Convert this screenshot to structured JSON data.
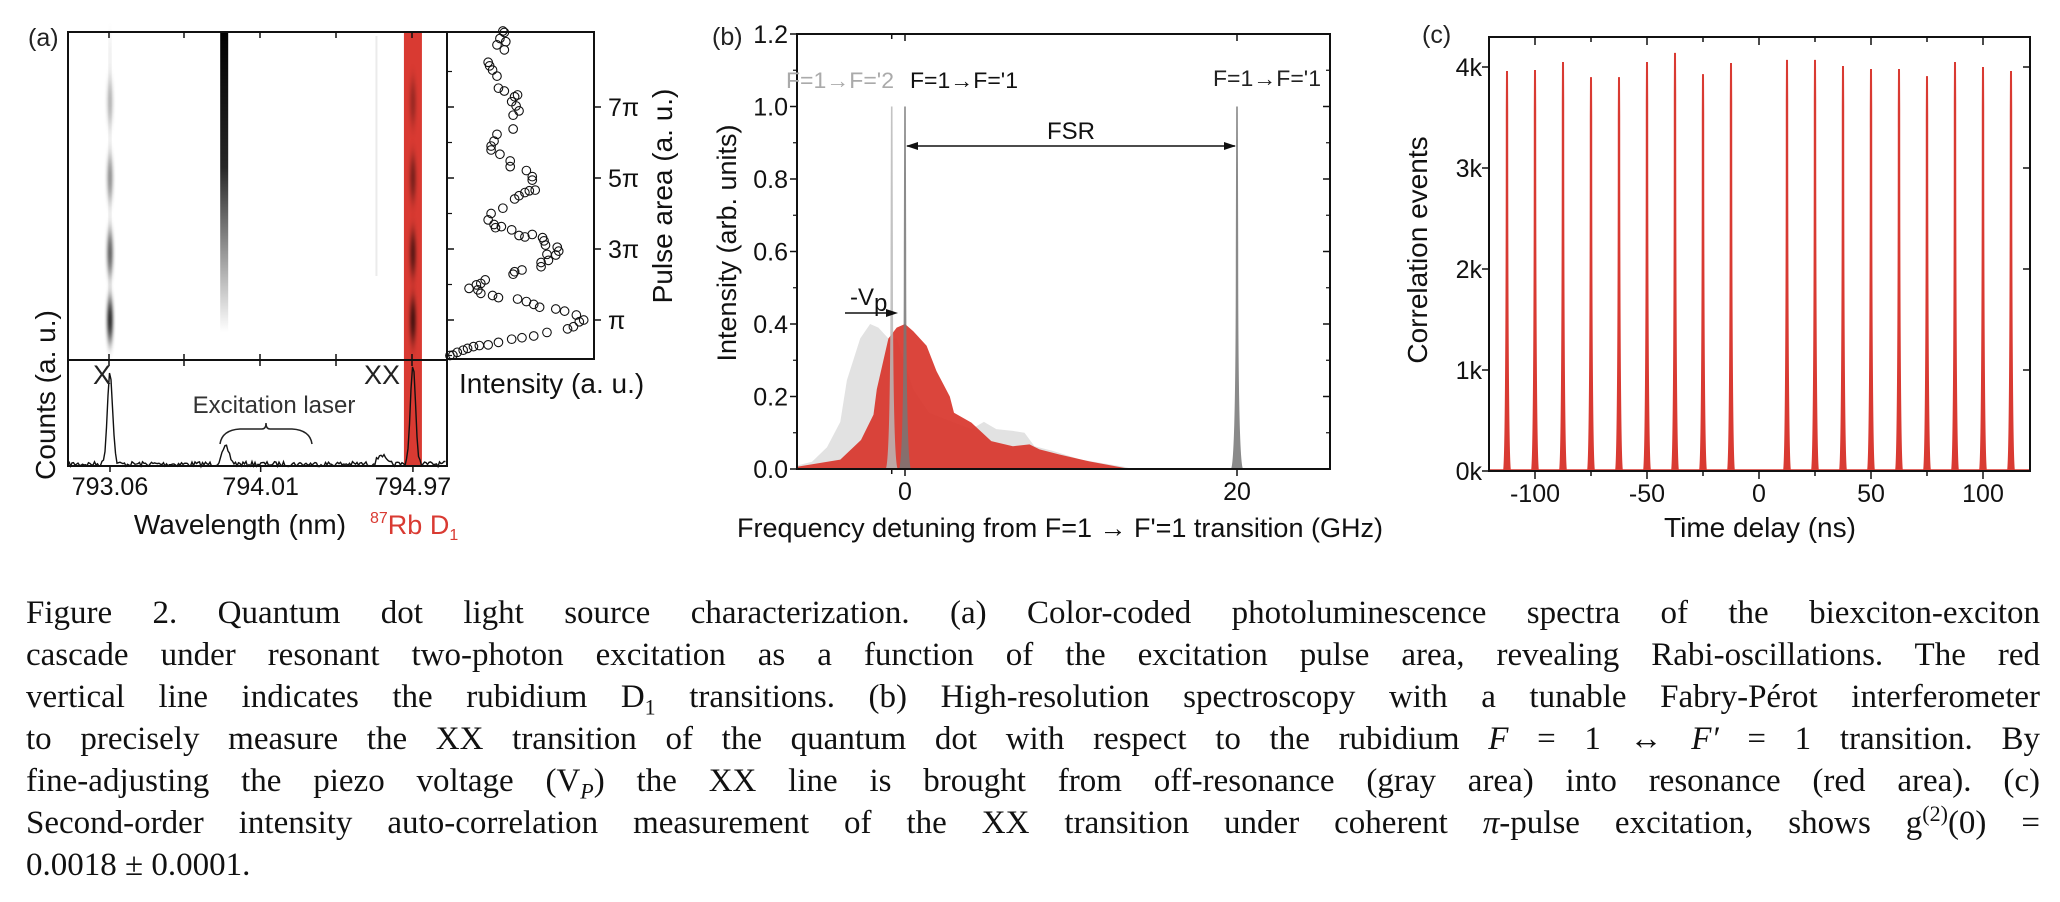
{
  "panels": {
    "a": {
      "label": "(a)"
    },
    "b": {
      "label": "(b)"
    },
    "c": {
      "label": "(c)"
    }
  },
  "colors": {
    "rb_red": "#d93a32",
    "off_resonance_gray": "#e2e2e2",
    "resonance_red": "#d8372d",
    "axis": "#111111"
  },
  "chart_data": [
    {
      "type": "heatmap",
      "panel": "(a)",
      "description_of_axes": "shared wavelength axis with spectrum below, pulse area axis on scatter at right",
      "line_labels": [
        "X",
        "XX"
      ],
      "emission_columns_nm": [
        793.06,
        793.78,
        794.74,
        794.97
      ],
      "rb_band_nm": 794.97
    },
    {
      "type": "line",
      "panel": "(a)",
      "xlabel": "Wavelength (nm)",
      "ylabel": "Counts (a. u.)",
      "xlim": [
        792.8,
        795.17
      ],
      "xticks": [
        "793.06",
        "794.01",
        "794.97"
      ],
      "peaks": [
        {
          "x": 793.06,
          "height": 0.95,
          "label": "X"
        },
        {
          "x": 793.79,
          "height": 0.17
        },
        {
          "x": 794.77,
          "height": 0.1
        },
        {
          "x": 794.97,
          "height": 1.0,
          "label": "XX"
        }
      ],
      "annotation": "Excitation laser",
      "highlight": {
        "sup": "87",
        "main": "Rb D",
        "sub": "1"
      }
    },
    {
      "type": "scatter",
      "panel": "(a)",
      "xlabel": "Intensity (a. u.)",
      "ylabel": "Pulse area (a. u.)",
      "xlim": [
        0,
        1
      ],
      "ylim": [
        -0.1,
        9.2
      ],
      "yticks": [
        {
          "v": 1,
          "label": "π"
        },
        {
          "v": 3,
          "label": "3π"
        },
        {
          "v": 5,
          "label": "5π"
        },
        {
          "v": 7,
          "label": "7π"
        }
      ],
      "points": [
        [
          0.02,
          0.0
        ],
        [
          0.04,
          0.01
        ],
        [
          0.07,
          0.09
        ],
        [
          0.11,
          0.15
        ],
        [
          0.14,
          0.2
        ],
        [
          0.18,
          0.25
        ],
        [
          0.22,
          0.28
        ],
        [
          0.28,
          0.3
        ],
        [
          0.35,
          0.37
        ],
        [
          0.44,
          0.46
        ],
        [
          0.51,
          0.5
        ],
        [
          0.59,
          0.55
        ],
        [
          0.68,
          0.65
        ],
        [
          0.82,
          0.75
        ],
        [
          0.86,
          0.81
        ],
        [
          0.9,
          0.95
        ],
        [
          0.93,
          1.0
        ],
        [
          0.88,
          1.14
        ],
        [
          0.8,
          1.25
        ],
        [
          0.74,
          1.31
        ],
        [
          0.63,
          1.36
        ],
        [
          0.59,
          1.44
        ],
        [
          0.54,
          1.52
        ],
        [
          0.48,
          1.59
        ],
        [
          0.35,
          1.63
        ],
        [
          0.31,
          1.69
        ],
        [
          0.23,
          1.75
        ],
        [
          0.21,
          1.85
        ],
        [
          0.15,
          1.89
        ],
        [
          0.2,
          1.99
        ],
        [
          0.23,
          2.03
        ],
        [
          0.26,
          2.13
        ],
        [
          0.45,
          2.29
        ],
        [
          0.46,
          2.36
        ],
        [
          0.51,
          2.41
        ],
        [
          0.64,
          2.5
        ],
        [
          0.64,
          2.62
        ],
        [
          0.69,
          2.68
        ],
        [
          0.68,
          2.85
        ],
        [
          0.74,
          2.83
        ],
        [
          0.76,
          2.94
        ],
        [
          0.75,
          3.05
        ],
        [
          0.67,
          3.11
        ],
        [
          0.66,
          3.23
        ],
        [
          0.65,
          3.32
        ],
        [
          0.58,
          3.41
        ],
        [
          0.53,
          3.34
        ],
        [
          0.49,
          3.38
        ],
        [
          0.44,
          3.54
        ],
        [
          0.37,
          3.63
        ],
        [
          0.33,
          3.6
        ],
        [
          0.32,
          3.69
        ],
        [
          0.28,
          3.82
        ],
        [
          0.3,
          4.0
        ],
        [
          0.38,
          4.15
        ],
        [
          0.46,
          4.41
        ],
        [
          0.49,
          4.5
        ],
        [
          0.53,
          4.59
        ],
        [
          0.56,
          4.64
        ],
        [
          0.6,
          4.66
        ],
        [
          0.58,
          4.94
        ],
        [
          0.58,
          5.04
        ],
        [
          0.54,
          5.21
        ],
        [
          0.43,
          5.32
        ],
        [
          0.43,
          5.48
        ],
        [
          0.36,
          5.67
        ],
        [
          0.3,
          5.79
        ],
        [
          0.3,
          5.9
        ],
        [
          0.32,
          6.04
        ],
        [
          0.34,
          6.23
        ],
        [
          0.45,
          6.38
        ],
        [
          0.45,
          6.77
        ],
        [
          0.49,
          6.89
        ],
        [
          0.47,
          7.03
        ],
        [
          0.44,
          7.15
        ],
        [
          0.46,
          7.29
        ],
        [
          0.48,
          7.34
        ],
        [
          0.39,
          7.45
        ],
        [
          0.35,
          7.53
        ],
        [
          0.34,
          7.87
        ],
        [
          0.31,
          8.04
        ],
        [
          0.29,
          8.16
        ],
        [
          0.28,
          8.26
        ],
        [
          0.39,
          8.61
        ],
        [
          0.4,
          8.84
        ],
        [
          0.36,
          8.93
        ],
        [
          0.34,
          8.75
        ],
        [
          0.38,
          9.14
        ],
        [
          0.39,
          9.1
        ]
      ]
    },
    {
      "type": "area",
      "panel": "(b)",
      "xlabel": "Frequency detuning from F=1 → F'=1 transition (GHz)",
      "ylabel": "Intensity (arb. units)",
      "xlim": [
        -6.5,
        25.6
      ],
      "ylim": [
        0,
        1.2
      ],
      "xticks": [
        "0",
        "20"
      ],
      "yticks": [
        "0.0",
        "0.2",
        "0.4",
        "0.6",
        "0.8",
        "1.0",
        "1.2"
      ],
      "series": [
        {
          "color": "#e2e2e2",
          "points": [
            [
              -6.5,
              0.0
            ],
            [
              -6.47,
              0.01
            ],
            [
              -5.6,
              0.02
            ],
            [
              -4.7,
              0.06
            ],
            [
              -3.9,
              0.13
            ],
            [
              -3.5,
              0.245
            ],
            [
              -2.7,
              0.36
            ],
            [
              -2.1,
              0.4
            ],
            [
              -1.6,
              0.39
            ],
            [
              -1.0,
              0.36
            ],
            [
              -0.5,
              0.36
            ],
            [
              0.5,
              0.22
            ],
            [
              1.45,
              0.155
            ],
            [
              4.0,
              0.11
            ],
            [
              4.75,
              0.13
            ],
            [
              5.5,
              0.11
            ],
            [
              6.5,
              0.105
            ],
            [
              7.2,
              0.1
            ],
            [
              7.8,
              0.063
            ],
            [
              8.9,
              0.05
            ],
            [
              10.6,
              0.026
            ],
            [
              13.2,
              0.006
            ],
            [
              13.7,
              0.0
            ]
          ]
        },
        {
          "color": "#d8372d",
          "points": [
            [
              -6.5,
              0.0
            ],
            [
              -6.5,
              0.006
            ],
            [
              -3.9,
              0.026
            ],
            [
              -2.65,
              0.08
            ],
            [
              -1.9,
              0.15
            ],
            [
              -1.7,
              0.22
            ],
            [
              -1.0,
              0.36
            ],
            [
              -0.5,
              0.39
            ],
            [
              0.0,
              0.4
            ],
            [
              0.5,
              0.38
            ],
            [
              1.3,
              0.34
            ],
            [
              1.9,
              0.27
            ],
            [
              2.7,
              0.2
            ],
            [
              2.95,
              0.155
            ],
            [
              4.0,
              0.128
            ],
            [
              5.2,
              0.077
            ],
            [
              6.5,
              0.063
            ],
            [
              7.5,
              0.068
            ],
            [
              8.1,
              0.054
            ],
            [
              9.3,
              0.04
            ],
            [
              11.1,
              0.021
            ],
            [
              13.2,
              0.003
            ],
            [
              13.8,
              0.0
            ]
          ]
        }
      ],
      "reference_lines": [
        {
          "x": -0.8,
          "height": 1.0,
          "label": "F=1→F='2",
          "color": "#b8b8b8"
        },
        {
          "x": 0.0,
          "height": 1.0,
          "label": "F=1→F='1",
          "color": "#777777"
        },
        {
          "x": 20.0,
          "height": 1.0,
          "label": "F=1→F='1",
          "color": "#8a8a8a"
        }
      ],
      "annotations": {
        "fsr": "FSR",
        "vp_prefix": "-V",
        "vp_sub": "p"
      }
    },
    {
      "type": "bar",
      "panel": "(c)",
      "xlabel": "Time delay (ns)",
      "ylabel": "Correlation events",
      "xlim": [
        -120.5,
        121
      ],
      "ylim": [
        0,
        4.3
      ],
      "xticks": [
        "-100",
        "-50",
        "0",
        "50",
        "100"
      ],
      "yticks": [
        "0k",
        "1k",
        "2k",
        "3k",
        "4k"
      ],
      "unit": "k",
      "x": [
        -112.5,
        -100,
        -87.5,
        -75,
        -62.5,
        -50,
        -37.5,
        -25,
        -12.5,
        0,
        12.5,
        25,
        37.5,
        50,
        62.5,
        75,
        87.5,
        100,
        112.5
      ],
      "values": [
        3.96,
        3.97,
        4.05,
        3.9,
        3.9,
        4.05,
        4.14,
        3.93,
        4.04,
        0.0,
        4.07,
        4.07,
        4.01,
        3.98,
        3.98,
        3.91,
        4.05,
        4.0,
        3.96
      ]
    }
  ],
  "caption": {
    "l1": "Figure 2.  Quantum dot light source characterization.  (a) Color-coded photoluminescence spectra of the biexciton-exciton",
    "l2": "cascade under resonant two-photon excitation as a function of the excitation pulse area, revealing Rabi-oscillations.  The red",
    "l3a": "vertical line indicates the rubidium D",
    "l3sub": "1",
    "l3b": " transitions. (b) High-resolution spectroscopy with a tunable Fabry-Pérot interferometer",
    "l4a": "to precisely measure the XX transition of the quantum dot with respect to the rubidium ",
    "l4f1": "F",
    "l4b": " = 1 ↔ ",
    "l4f2": "F′",
    "l4c": " = 1 transition.  By",
    "l5a": "fine-adjusting the piezo voltage (V",
    "l5sub": "P",
    "l5b": ") the XX line is brought from off-resonance (gray area) into resonance (red area).  (c)",
    "l6a": "Second-order intensity auto-correlation measurement of the XX transition under coherent ",
    "l6pi": "π",
    "l6b": "-pulse excitation, shows g",
    "l6sup": "(2)",
    "l6c": "(0) =",
    "l7": "0.0018 ± 0.0001."
  }
}
